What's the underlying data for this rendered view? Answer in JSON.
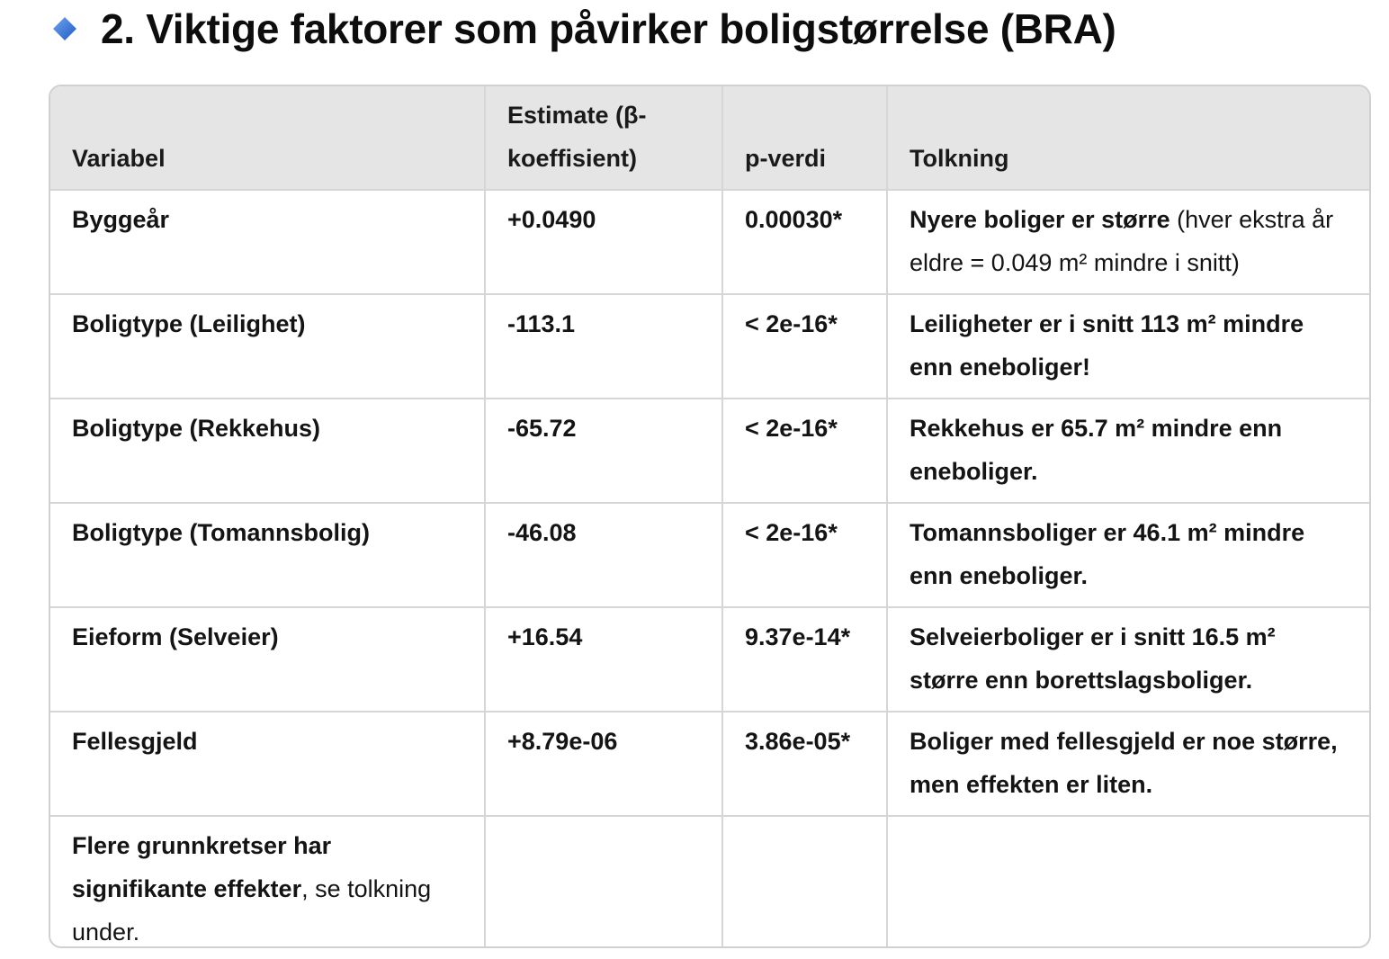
{
  "heading": {
    "icon": "blue-diamond-icon",
    "icon_color": "#2f6fd6",
    "text": "2. Viktige faktorer som påvirker boligstørrelse (BRA)"
  },
  "table": {
    "headers": [
      "Variabel",
      "Estimate (β-koeffisient)",
      "p-verdi",
      "Tolkning"
    ],
    "rows": [
      {
        "variable": "Byggeår",
        "estimate": "+0.0490",
        "p_value": "0.00030*",
        "interpretation_bold": "Nyere boliger er større",
        "interpretation_normal": " (hver ekstra år eldre = 0.049 m² mindre i snitt)"
      },
      {
        "variable": "Boligtype (Leilighet)",
        "estimate": "-113.1",
        "p_value": "< 2e-16*",
        "interpretation_bold": "Leiligheter er i snitt 113 m² mindre enn eneboliger!",
        "interpretation_normal": ""
      },
      {
        "variable": "Boligtype (Rekkehus)",
        "estimate": "-65.72",
        "p_value": "< 2e-16*",
        "interpretation_bold": "Rekkehus er 65.7 m² mindre enn eneboliger.",
        "interpretation_normal": ""
      },
      {
        "variable": "Boligtype (Tomannsbolig)",
        "estimate": "-46.08",
        "p_value": "< 2e-16*",
        "interpretation_bold": "Tomannsboliger er 46.1 m² mindre enn eneboliger.",
        "interpretation_normal": ""
      },
      {
        "variable": "Eieform (Selveier)",
        "estimate": "+16.54",
        "p_value": "9.37e-14*",
        "interpretation_bold": "Selveierboliger er i snitt 16.5 m² større enn borettslagsboliger.",
        "interpretation_normal": ""
      },
      {
        "variable": "Fellesgjeld",
        "estimate": "+8.79e-06",
        "p_value": "3.86e-05*",
        "interpretation_bold": "Boliger med fellesgjeld er noe større, men effekten er liten.",
        "interpretation_normal": ""
      }
    ],
    "last_row": {
      "variable_bold": "Flere grunnkretser har signifikante effekter",
      "variable_normal": ", se tolkning under.",
      "estimate": "",
      "p_value": "",
      "interpretation": ""
    }
  }
}
